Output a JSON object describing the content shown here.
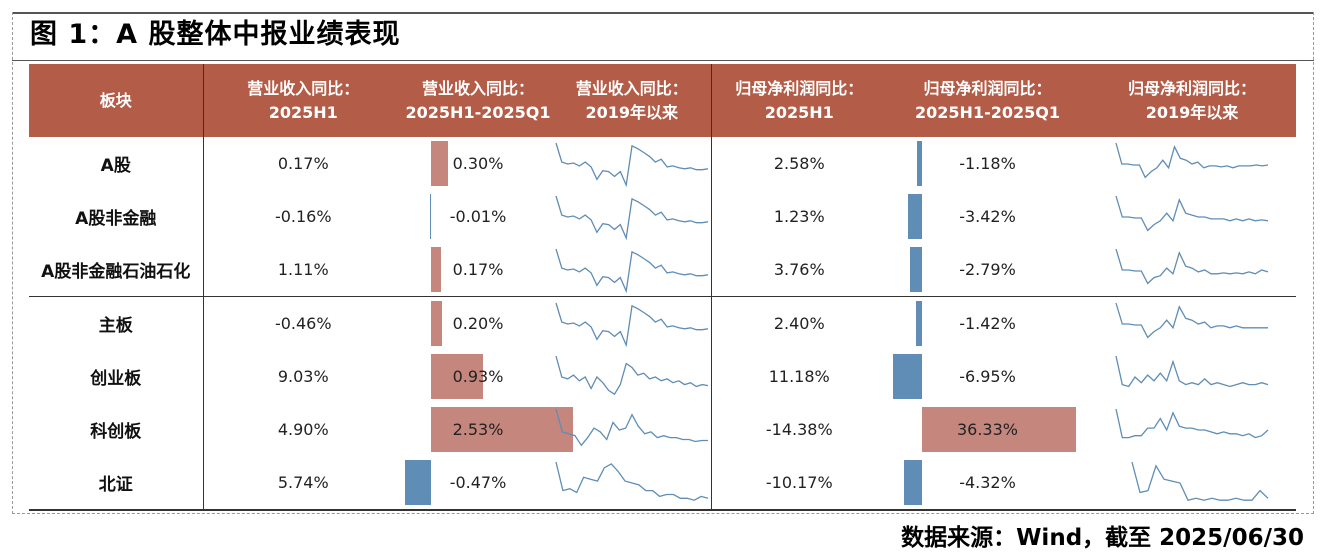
{
  "title": "图 1：A 股整体中报业绩表现",
  "source": "数据来源：Wind，截至 2025/06/30",
  "colors": {
    "header_bg": "#b35c47",
    "pos_bar": "#c4867d",
    "neg_bar": "#5f8db6",
    "spark": "#5f8db6"
  },
  "headers": {
    "block": "板块",
    "rev_h1_a": "营业收入同比：",
    "rev_h1_b": "2025H1",
    "rev_diff_a": "营业收入同比：",
    "rev_diff_b": "2025H1-2025Q1",
    "rev_trend_a": "营业收入同比：",
    "rev_trend_b": "2019年以来",
    "np_h1_a": "归母净利润同比：",
    "np_h1_b": "2025H1",
    "np_diff_a": "归母净利润同比：",
    "np_diff_b": "2025H1-2025Q1",
    "np_trend_a": "归母净利润同比：",
    "np_trend_b": "2019年以来"
  },
  "rows": [
    {
      "name": "A股",
      "rev_h1": "0.17%",
      "rev_diff": "0.30%",
      "rev_diff_val": 0.3,
      "np_h1": "2.58%",
      "np_diff": "-1.18%",
      "np_diff_val": -1.18
    },
    {
      "name": "A股非金融",
      "rev_h1": "-0.16%",
      "rev_diff": "-0.01%",
      "rev_diff_val": -0.01,
      "np_h1": "1.23%",
      "np_diff": "-3.42%",
      "np_diff_val": -3.42
    },
    {
      "name": "A股非金融石油石化",
      "rev_h1": "1.11%",
      "rev_diff": "0.17%",
      "rev_diff_val": 0.17,
      "np_h1": "3.76%",
      "np_diff": "-2.79%",
      "np_diff_val": -2.79
    },
    {
      "name": "主板",
      "rev_h1": "-0.46%",
      "rev_diff": "0.20%",
      "rev_diff_val": 0.2,
      "np_h1": "2.40%",
      "np_diff": "-1.42%",
      "np_diff_val": -1.42
    },
    {
      "name": "创业板",
      "rev_h1": "9.03%",
      "rev_diff": "0.93%",
      "rev_diff_val": 0.93,
      "np_h1": "11.18%",
      "np_diff": "-6.95%",
      "np_diff_val": -6.95
    },
    {
      "name": "科创板",
      "rev_h1": "4.90%",
      "rev_diff": "2.53%",
      "rev_diff_val": 2.53,
      "np_h1": "-14.38%",
      "np_diff": "36.33%",
      "np_diff_val": 36.33
    },
    {
      "name": "北证",
      "rev_h1": "5.74%",
      "rev_diff": "-0.47%",
      "rev_diff_val": -0.47,
      "np_h1": "-10.17%",
      "np_diff": "-4.32%",
      "np_diff_val": -4.32
    }
  ]
}
